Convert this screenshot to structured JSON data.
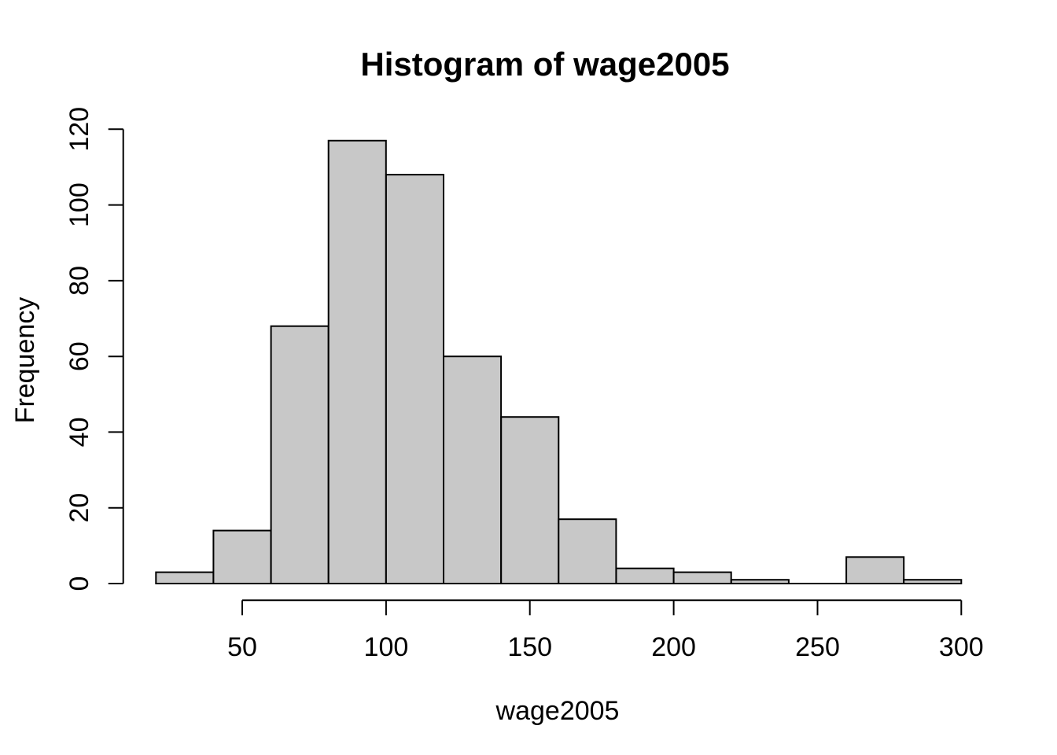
{
  "page": {
    "background": "#FFFFFF"
  },
  "chart_data": {
    "type": "bar",
    "subtype": "histogram",
    "title": "Histogram of wage2005",
    "xlabel": "wage2005",
    "ylabel": "Frequency",
    "bin_edges": [
      20,
      40,
      60,
      80,
      100,
      120,
      140,
      160,
      180,
      200,
      220,
      240,
      260,
      280,
      300
    ],
    "counts": [
      3,
      14,
      68,
      117,
      108,
      60,
      44,
      17,
      4,
      3,
      1,
      0,
      7,
      1
    ],
    "x_ticks": [
      50,
      100,
      150,
      200,
      250,
      300
    ],
    "y_ticks": [
      0,
      20,
      40,
      60,
      80,
      100,
      120
    ],
    "xlim": [
      20,
      300
    ],
    "ylim": [
      0,
      120
    ],
    "grid": false,
    "legend": "none",
    "bar_fill": "#C8C8C8",
    "bar_stroke": "#000000",
    "axis_color": "#000000",
    "text_color": "#000000"
  }
}
